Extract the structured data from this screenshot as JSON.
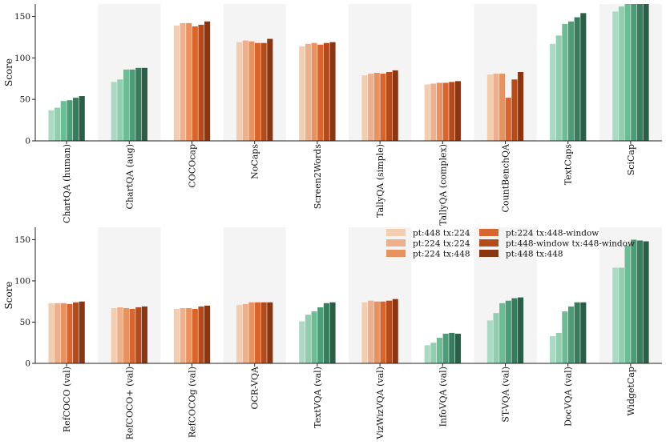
{
  "series_names": [
    "pt:448 tx:224",
    "pt:224 tx:224",
    "pt:224 tx:448",
    "pt:224 tx:448-window",
    "pt:448-window tx:448-window",
    "pt:448 tx:448"
  ],
  "palettes": {
    "orange": [
      "#f3cdb0",
      "#eeb08c",
      "#e8935f",
      "#d9652e",
      "#b44b1d",
      "#8a3613"
    ],
    "green": [
      "#acd9c3",
      "#93cdb0",
      "#6cbc94",
      "#4c9c78",
      "#377d5d",
      "#2a5e46"
    ]
  },
  "chart_data": [
    {
      "type": "bar",
      "ylabel": "Score",
      "xlabel": "",
      "ylim": [
        0,
        165
      ],
      "yticks": [
        0,
        50,
        100,
        150
      ],
      "grid": false,
      "shaded_alternate_categories": true,
      "categories": [
        "ChartQA (human)",
        "ChartQA (aug)",
        "COCOcap",
        "NoCaps",
        "Screen2Words",
        "TallyQA (simple)",
        "TallyQA (complex)",
        "CountBenchQA",
        "TextCaps",
        "SciCap"
      ],
      "palette_per_category": [
        "green",
        "green",
        "orange",
        "orange",
        "orange",
        "orange",
        "orange",
        "orange",
        "green",
        "green"
      ],
      "values": [
        [
          37,
          40,
          48,
          49,
          52,
          54
        ],
        [
          71,
          74,
          86,
          86,
          88,
          88
        ],
        [
          139,
          142,
          142,
          138,
          140,
          144
        ],
        [
          119,
          121,
          120,
          118,
          118,
          123
        ],
        [
          114,
          117,
          118,
          116,
          118,
          119
        ],
        [
          79,
          81,
          82,
          81,
          83,
          85
        ],
        [
          68,
          69,
          70,
          70,
          71,
          72
        ],
        [
          80,
          81,
          81,
          52,
          74,
          83
        ],
        [
          117,
          127,
          141,
          144,
          149,
          154
        ],
        [
          156,
          162,
          170,
          170,
          170,
          170
        ]
      ]
    },
    {
      "type": "bar",
      "ylabel": "Score",
      "xlabel": "",
      "ylim": [
        0,
        165
      ],
      "yticks": [
        0,
        50,
        100,
        150
      ],
      "grid": false,
      "shaded_alternate_categories": true,
      "legend_position": "top-right",
      "categories": [
        "RefCOCO (val)",
        "RefCOCO+ (val)",
        "RefCOCOg (val)",
        "OCR-VQA",
        "TextVQA (val)",
        "VizWizVQA (val)",
        "InfoVQA (val)",
        "ST-VQA (val)",
        "DocVQA (val)",
        "WidgetCap"
      ],
      "palette_per_category": [
        "orange",
        "orange",
        "orange",
        "orange",
        "green",
        "orange",
        "green",
        "green",
        "green",
        "green"
      ],
      "values": [
        [
          73,
          73,
          73,
          72,
          74,
          75
        ],
        [
          67,
          68,
          67,
          66,
          68,
          69
        ],
        [
          66,
          67,
          67,
          66,
          69,
          70
        ],
        [
          71,
          72,
          74,
          74,
          74,
          74
        ],
        [
          51,
          59,
          63,
          68,
          73,
          74
        ],
        [
          74,
          76,
          75,
          75,
          76,
          78
        ],
        [
          22,
          25,
          31,
          36,
          37,
          36
        ],
        [
          52,
          61,
          73,
          76,
          79,
          80
        ],
        [
          33,
          37,
          63,
          69,
          74,
          74
        ],
        [
          116,
          116,
          143,
          150,
          149,
          148
        ]
      ]
    }
  ]
}
